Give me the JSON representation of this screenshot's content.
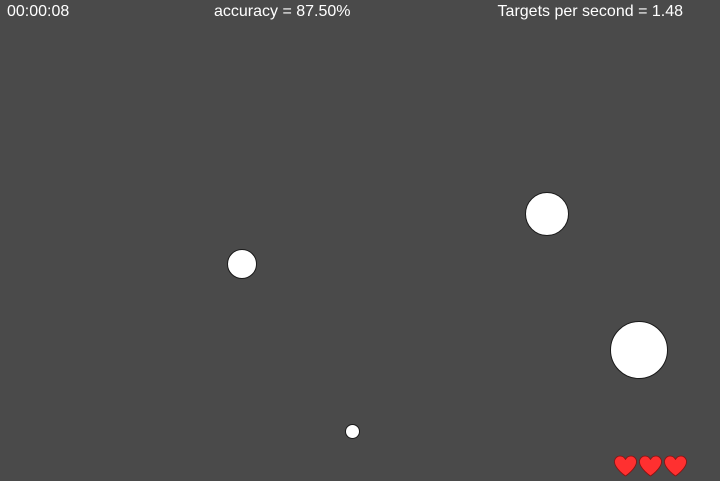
{
  "hud": {
    "timer": "00:00:08",
    "accuracy": "accuracy = 87.50%",
    "targets_per_second": "Targets per second = 1.48"
  },
  "lives": {
    "count": 3,
    "icon": "heart-icon",
    "color": "#ff3030"
  },
  "colors": {
    "background": "#4a4a4a",
    "target_fill": "#ffffff",
    "text": "#ffffff"
  }
}
